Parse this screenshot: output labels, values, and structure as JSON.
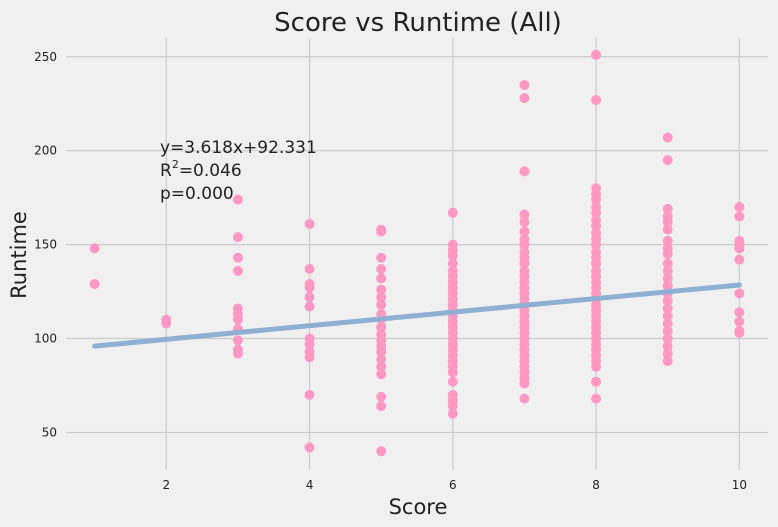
{
  "chart_data": {
    "type": "scatter",
    "title": "Score vs Runtime (All)",
    "xlabel": "Score",
    "ylabel": "Runtime",
    "xlim": [
      0.6,
      10.4
    ],
    "ylim": [
      30,
      260
    ],
    "xticks": [
      2,
      4,
      6,
      8,
      10
    ],
    "yticks": [
      50,
      100,
      150,
      200,
      250
    ],
    "grid": true,
    "point_color": "#ff99c2",
    "line_color": "#8fb0d2",
    "fit": {
      "slope": 3.618,
      "intercept": 92.331,
      "x_range": [
        1,
        10
      ]
    },
    "annotation": {
      "eq": "y=3.618x+92.331",
      "r2_prefix": "R",
      "r2_sup": "2",
      "r2_value": "=0.046",
      "p": "p=0.000"
    },
    "series": [
      {
        "points": [
          [
            1,
            148
          ],
          [
            1,
            129
          ],
          [
            2,
            110
          ],
          [
            2,
            108
          ],
          [
            3,
            174
          ],
          [
            3,
            154
          ],
          [
            3,
            143
          ],
          [
            3,
            136
          ],
          [
            3,
            116
          ],
          [
            3,
            113
          ],
          [
            3,
            110
          ],
          [
            3,
            105
          ],
          [
            3,
            99
          ],
          [
            3,
            94
          ],
          [
            3,
            92
          ],
          [
            4,
            161
          ],
          [
            4,
            137
          ],
          [
            4,
            129
          ],
          [
            4,
            127
          ],
          [
            4,
            122
          ],
          [
            4,
            117
          ],
          [
            4,
            100
          ],
          [
            4,
            97
          ],
          [
            4,
            93
          ],
          [
            4,
            90
          ],
          [
            4,
            70
          ],
          [
            4,
            42
          ],
          [
            5,
            158
          ],
          [
            5,
            157
          ],
          [
            5,
            143
          ],
          [
            5,
            137
          ],
          [
            5,
            132
          ],
          [
            5,
            126
          ],
          [
            5,
            122
          ],
          [
            5,
            118
          ],
          [
            5,
            113
          ],
          [
            5,
            110
          ],
          [
            5,
            106
          ],
          [
            5,
            102
          ],
          [
            5,
            99
          ],
          [
            5,
            96
          ],
          [
            5,
            93
          ],
          [
            5,
            89
          ],
          [
            5,
            85
          ],
          [
            5,
            81
          ],
          [
            5,
            69
          ],
          [
            5,
            64
          ],
          [
            5,
            40
          ],
          [
            6,
            167
          ],
          [
            6,
            150
          ],
          [
            6,
            147
          ],
          [
            6,
            144
          ],
          [
            6,
            140
          ],
          [
            6,
            136
          ],
          [
            6,
            133
          ],
          [
            6,
            130
          ],
          [
            6,
            127
          ],
          [
            6,
            124
          ],
          [
            6,
            121
          ],
          [
            6,
            118
          ],
          [
            6,
            115
          ],
          [
            6,
            112
          ],
          [
            6,
            109
          ],
          [
            6,
            106
          ],
          [
            6,
            103
          ],
          [
            6,
            100
          ],
          [
            6,
            97
          ],
          [
            6,
            94
          ],
          [
            6,
            91
          ],
          [
            6,
            88
          ],
          [
            6,
            85
          ],
          [
            6,
            82
          ],
          [
            6,
            77
          ],
          [
            6,
            70
          ],
          [
            6,
            67
          ],
          [
            6,
            64
          ],
          [
            6,
            60
          ],
          [
            7,
            235
          ],
          [
            7,
            228
          ],
          [
            7,
            189
          ],
          [
            7,
            166
          ],
          [
            7,
            162
          ],
          [
            7,
            157
          ],
          [
            7,
            153
          ],
          [
            7,
            150
          ],
          [
            7,
            146
          ],
          [
            7,
            143
          ],
          [
            7,
            140
          ],
          [
            7,
            136
          ],
          [
            7,
            133
          ],
          [
            7,
            130
          ],
          [
            7,
            127
          ],
          [
            7,
            124
          ],
          [
            7,
            121
          ],
          [
            7,
            118
          ],
          [
            7,
            115
          ],
          [
            7,
            112
          ],
          [
            7,
            109
          ],
          [
            7,
            106
          ],
          [
            7,
            103
          ],
          [
            7,
            100
          ],
          [
            7,
            97
          ],
          [
            7,
            94
          ],
          [
            7,
            91
          ],
          [
            7,
            88
          ],
          [
            7,
            85
          ],
          [
            7,
            82
          ],
          [
            7,
            79
          ],
          [
            7,
            76
          ],
          [
            7,
            68
          ],
          [
            8,
            251
          ],
          [
            8,
            227
          ],
          [
            8,
            180
          ],
          [
            8,
            177
          ],
          [
            8,
            174
          ],
          [
            8,
            170
          ],
          [
            8,
            167
          ],
          [
            8,
            163
          ],
          [
            8,
            160
          ],
          [
            8,
            156
          ],
          [
            8,
            153
          ],
          [
            8,
            150
          ],
          [
            8,
            146
          ],
          [
            8,
            143
          ],
          [
            8,
            140
          ],
          [
            8,
            136
          ],
          [
            8,
            133
          ],
          [
            8,
            130
          ],
          [
            8,
            127
          ],
          [
            8,
            124
          ],
          [
            8,
            121
          ],
          [
            8,
            118
          ],
          [
            8,
            115
          ],
          [
            8,
            112
          ],
          [
            8,
            109
          ],
          [
            8,
            106
          ],
          [
            8,
            103
          ],
          [
            8,
            100
          ],
          [
            8,
            97
          ],
          [
            8,
            94
          ],
          [
            8,
            91
          ],
          [
            8,
            88
          ],
          [
            8,
            85
          ],
          [
            8,
            77
          ],
          [
            8,
            68
          ],
          [
            9,
            207
          ],
          [
            9,
            195
          ],
          [
            9,
            169
          ],
          [
            9,
            165
          ],
          [
            9,
            162
          ],
          [
            9,
            158
          ],
          [
            9,
            152
          ],
          [
            9,
            148
          ],
          [
            9,
            145
          ],
          [
            9,
            140
          ],
          [
            9,
            136
          ],
          [
            9,
            132
          ],
          [
            9,
            128
          ],
          [
            9,
            124
          ],
          [
            9,
            120
          ],
          [
            9,
            116
          ],
          [
            9,
            112
          ],
          [
            9,
            108
          ],
          [
            9,
            104
          ],
          [
            9,
            100
          ],
          [
            9,
            96
          ],
          [
            9,
            92
          ],
          [
            9,
            88
          ],
          [
            10,
            170
          ],
          [
            10,
            165
          ],
          [
            10,
            152
          ],
          [
            10,
            150
          ],
          [
            10,
            148
          ],
          [
            10,
            142
          ],
          [
            10,
            124
          ],
          [
            10,
            114
          ],
          [
            10,
            109
          ],
          [
            10,
            104
          ],
          [
            10,
            103
          ]
        ]
      }
    ]
  }
}
